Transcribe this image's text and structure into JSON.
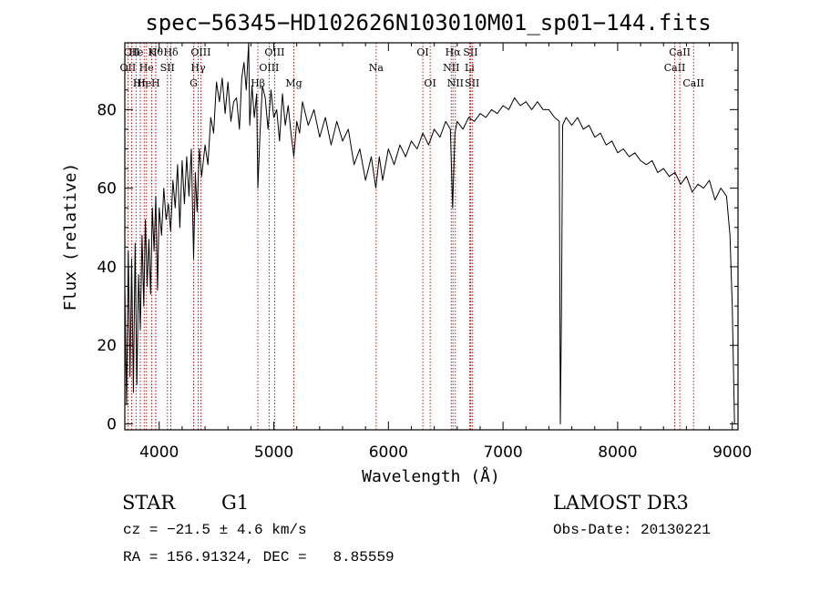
{
  "chart_data": {
    "type": "line",
    "title": "spec−56345−HD102626N103010M01_sp01−144.fits",
    "xlabel": "Wavelength (Å)",
    "ylabel": "Flux (relative)",
    "xlim": [
      3700,
      9050
    ],
    "ylim": [
      -1.5,
      97
    ],
    "xticks": [
      4000,
      5000,
      6000,
      7000,
      8000,
      9000
    ],
    "yticks": [
      0,
      20,
      40,
      60,
      80
    ],
    "series": [
      {
        "name": "flux",
        "points": [
          [
            3700,
            35
          ],
          [
            3715,
            5
          ],
          [
            3730,
            44
          ],
          [
            3745,
            12
          ],
          [
            3760,
            42
          ],
          [
            3775,
            8
          ],
          [
            3790,
            46
          ],
          [
            3805,
            10
          ],
          [
            3820,
            38
          ],
          [
            3835,
            24
          ],
          [
            3850,
            48
          ],
          [
            3865,
            30
          ],
          [
            3880,
            52
          ],
          [
            3895,
            35
          ],
          [
            3910,
            47
          ],
          [
            3925,
            33
          ],
          [
            3940,
            55
          ],
          [
            3955,
            44
          ],
          [
            3970,
            58
          ],
          [
            3985,
            34
          ],
          [
            4000,
            55
          ],
          [
            4020,
            48
          ],
          [
            4040,
            60
          ],
          [
            4060,
            52
          ],
          [
            4080,
            56
          ],
          [
            4100,
            49
          ],
          [
            4120,
            62
          ],
          [
            4140,
            55
          ],
          [
            4160,
            66
          ],
          [
            4180,
            50
          ],
          [
            4200,
            67
          ],
          [
            4220,
            56
          ],
          [
            4240,
            68
          ],
          [
            4260,
            58
          ],
          [
            4280,
            70
          ],
          [
            4300,
            42
          ],
          [
            4315,
            64
          ],
          [
            4330,
            54
          ],
          [
            4350,
            70
          ],
          [
            4370,
            63
          ],
          [
            4400,
            71
          ],
          [
            4425,
            66
          ],
          [
            4450,
            78
          ],
          [
            4475,
            74
          ],
          [
            4500,
            87
          ],
          [
            4525,
            82
          ],
          [
            4550,
            88
          ],
          [
            4575,
            79
          ],
          [
            4600,
            87
          ],
          [
            4625,
            77
          ],
          [
            4650,
            82
          ],
          [
            4675,
            83
          ],
          [
            4700,
            75
          ],
          [
            4720,
            88
          ],
          [
            4740,
            92
          ],
          [
            4760,
            85
          ],
          [
            4780,
            100
          ],
          [
            4790,
            76
          ],
          [
            4810,
            86
          ],
          [
            4830,
            78
          ],
          [
            4850,
            84
          ],
          [
            4861,
            60
          ],
          [
            4880,
            74
          ],
          [
            4900,
            86
          ],
          [
            4925,
            83
          ],
          [
            4950,
            75
          ],
          [
            4975,
            85
          ],
          [
            5000,
            78
          ],
          [
            5025,
            80
          ],
          [
            5050,
            72
          ],
          [
            5075,
            84
          ],
          [
            5100,
            76
          ],
          [
            5125,
            81
          ],
          [
            5150,
            74
          ],
          [
            5175,
            68
          ],
          [
            5200,
            77
          ],
          [
            5225,
            74
          ],
          [
            5250,
            82
          ],
          [
            5300,
            76
          ],
          [
            5350,
            80
          ],
          [
            5400,
            73
          ],
          [
            5450,
            78
          ],
          [
            5500,
            71
          ],
          [
            5550,
            77
          ],
          [
            5600,
            72
          ],
          [
            5650,
            75
          ],
          [
            5700,
            66
          ],
          [
            5750,
            70
          ],
          [
            5800,
            62
          ],
          [
            5850,
            68
          ],
          [
            5890,
            60
          ],
          [
            5920,
            68
          ],
          [
            5950,
            62
          ],
          [
            6000,
            70
          ],
          [
            6050,
            66
          ],
          [
            6100,
            71
          ],
          [
            6150,
            68
          ],
          [
            6200,
            72
          ],
          [
            6250,
            70
          ],
          [
            6300,
            74
          ],
          [
            6350,
            71
          ],
          [
            6400,
            75
          ],
          [
            6450,
            73
          ],
          [
            6500,
            77
          ],
          [
            6540,
            75
          ],
          [
            6560,
            55
          ],
          [
            6580,
            74
          ],
          [
            6600,
            77
          ],
          [
            6650,
            75
          ],
          [
            6700,
            78
          ],
          [
            6750,
            77
          ],
          [
            6800,
            79
          ],
          [
            6850,
            78
          ],
          [
            6900,
            80
          ],
          [
            6950,
            79
          ],
          [
            7000,
            81
          ],
          [
            7050,
            80
          ],
          [
            7100,
            83
          ],
          [
            7150,
            81
          ],
          [
            7200,
            82
          ],
          [
            7250,
            80
          ],
          [
            7300,
            82
          ],
          [
            7350,
            80
          ],
          [
            7400,
            80
          ],
          [
            7450,
            78
          ],
          [
            7490,
            77
          ],
          [
            7500,
            0
          ],
          [
            7510,
            30
          ],
          [
            7520,
            76
          ],
          [
            7550,
            78
          ],
          [
            7600,
            76
          ],
          [
            7650,
            78
          ],
          [
            7700,
            75
          ],
          [
            7750,
            76
          ],
          [
            7800,
            73
          ],
          [
            7850,
            74
          ],
          [
            7900,
            71
          ],
          [
            7950,
            72
          ],
          [
            8000,
            69
          ],
          [
            8050,
            70
          ],
          [
            8100,
            68
          ],
          [
            8150,
            69
          ],
          [
            8200,
            67
          ],
          [
            8250,
            66
          ],
          [
            8300,
            67
          ],
          [
            8350,
            64
          ],
          [
            8400,
            65
          ],
          [
            8450,
            63
          ],
          [
            8500,
            64
          ],
          [
            8550,
            61
          ],
          [
            8600,
            63
          ],
          [
            8650,
            59
          ],
          [
            8700,
            61
          ],
          [
            8750,
            60
          ],
          [
            8800,
            62
          ],
          [
            8850,
            57
          ],
          [
            8900,
            60
          ],
          [
            8950,
            58
          ],
          [
            8980,
            48
          ],
          [
            9000,
            30
          ],
          [
            9020,
            0
          ]
        ]
      }
    ],
    "line_markers": [
      {
        "w": 3727,
        "row": 2,
        "label": "OII"
      },
      {
        "w": 3760,
        "row": 1,
        "label": "OII"
      },
      {
        "w": 3798,
        "row": 1,
        "label": "He"
      },
      {
        "w": 3835,
        "row": 3,
        "label": "Hη"
      },
      {
        "w": 3869,
        "row": 3,
        "label": "He"
      },
      {
        "w": 3889,
        "row": 2,
        "label": "He"
      },
      {
        "w": 3934,
        "row": 1,
        "label": "K"
      },
      {
        "w": 3969,
        "row": 3,
        "label": "H"
      },
      {
        "w": 3970,
        "row": 1,
        "label": "Hθ"
      },
      {
        "w": 4072,
        "row": 2,
        "label": "SII"
      },
      {
        "w": 4102,
        "row": 1,
        "label": "Hδ"
      },
      {
        "w": 4300,
        "row": 3,
        "label": "G"
      },
      {
        "w": 4340,
        "row": 2,
        "label": "Hγ"
      },
      {
        "w": 4363,
        "row": 1,
        "label": "OIII"
      },
      {
        "w": 4861,
        "row": 3,
        "label": "Hβ"
      },
      {
        "w": 4959,
        "row": 2,
        "label": "OIII"
      },
      {
        "w": 5007,
        "row": 1,
        "label": "OIII"
      },
      {
        "w": 5175,
        "row": 3,
        "label": "Mg"
      },
      {
        "w": 5893,
        "row": 2,
        "label": "Na"
      },
      {
        "w": 6300,
        "row": 1,
        "label": "OI"
      },
      {
        "w": 6364,
        "row": 3,
        "label": "OI"
      },
      {
        "w": 6548,
        "row": 2,
        "label": "NII"
      },
      {
        "w": 6563,
        "row": 1,
        "label": "Hα"
      },
      {
        "w": 6584,
        "row": 3,
        "label": "NII"
      },
      {
        "w": 6708,
        "row": 2,
        "label": "Li"
      },
      {
        "w": 6717,
        "row": 1,
        "label": "SII"
      },
      {
        "w": 6731,
        "row": 3,
        "label": "SII"
      },
      {
        "w": 8498,
        "row": 2,
        "label": "CaII"
      },
      {
        "w": 8542,
        "row": 1,
        "label": "CaII"
      },
      {
        "w": 8662,
        "row": 3,
        "label": "CaII"
      }
    ]
  },
  "info": {
    "object_type": "STAR",
    "subclass": "G1",
    "cz": "cz = −21.5 ± 4.6 km/s",
    "coords": "RA = 156.91324, DEC =   8.85559",
    "survey": "LAMOST DR3",
    "obs_date": "Obs-Date: 20130221"
  }
}
